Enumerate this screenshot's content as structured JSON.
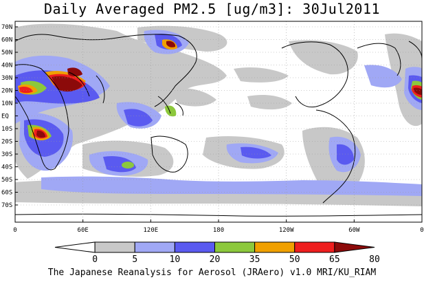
{
  "title": "Daily Averaged PM2.5 [ug/m3]: 30Jul2011",
  "footer": "The Japanese Reanalysis for Aerosol (JRAero) v1.0 MRI/KU_RIAM",
  "lat_labels": [
    "70N",
    "60N",
    "50N",
    "40N",
    "30N",
    "20N",
    "10N",
    "EQ",
    "10S",
    "20S",
    "30S",
    "40S",
    "50S",
    "60S",
    "70S"
  ],
  "lon_labels": [
    "0",
    "60E",
    "120E",
    "180",
    "120W",
    "60W",
    "0"
  ],
  "colorbar": {
    "levels": [
      "0",
      "5",
      "10",
      "20",
      "35",
      "50",
      "65",
      "80"
    ],
    "colors": [
      "#ffffff",
      "#c8c8c8",
      "#a0a8f5",
      "#5a5af0",
      "#8cc83c",
      "#f0a000",
      "#ee1e1e",
      "#8c0a0a"
    ]
  },
  "colors": {
    "gray": "#c8c8c8",
    "light_blue": "#a0a8f5",
    "blue": "#5a5af0",
    "green": "#8cc83c",
    "orange": "#f0a000",
    "red": "#ee1e1e",
    "dark_red": "#8c0a0a"
  }
}
